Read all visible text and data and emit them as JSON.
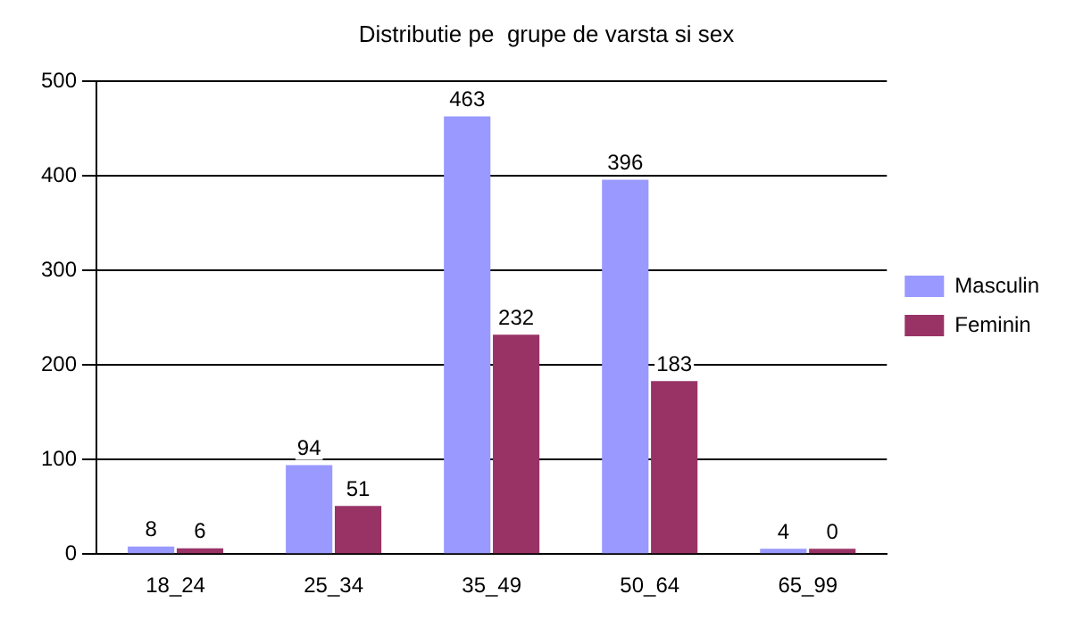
{
  "chart_data": {
    "type": "bar",
    "title": "Distributie pe  grupe de varsta si sex",
    "categories": [
      "18_24",
      "25_34",
      "35_49",
      "50_64",
      "65_99"
    ],
    "series": [
      {
        "name": "Masculin",
        "color": "#9999ff",
        "values": [
          8,
          94,
          463,
          396,
          4
        ]
      },
      {
        "name": "Feminin",
        "color": "#993366",
        "values": [
          6,
          51,
          232,
          183,
          0
        ]
      }
    ],
    "ylim": [
      0,
      500
    ],
    "yticks": [
      0,
      100,
      200,
      300,
      400,
      500
    ],
    "grid": "y",
    "legend": "right",
    "data_labels": true
  }
}
